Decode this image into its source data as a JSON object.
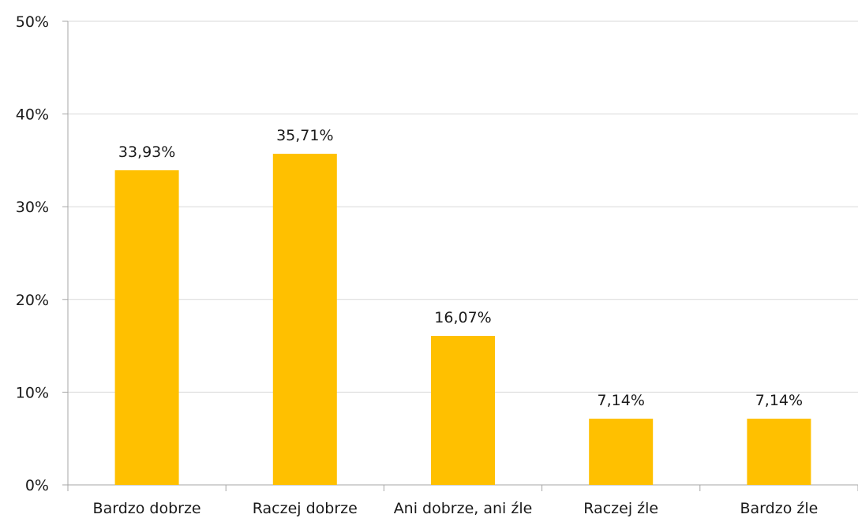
{
  "chart_data": {
    "type": "bar",
    "categories": [
      "Bardzo dobrze",
      "Raczej dobrze",
      "Ani dobrze, ani źle",
      "Raczej źle",
      "Bardzo źle"
    ],
    "values": [
      33.93,
      35.71,
      16.07,
      7.14,
      7.14
    ],
    "data_labels": [
      "33,93%",
      "35,71%",
      "16,07%",
      "7,14%",
      "7,14%"
    ],
    "y_ticks": [
      0,
      10,
      20,
      30,
      40,
      50
    ],
    "y_tick_labels": [
      "0%",
      "10%",
      "20%",
      "30%",
      "40%",
      "50%"
    ],
    "ylim": [
      0,
      50
    ],
    "title": "",
    "xlabel": "",
    "ylabel": "",
    "grid": true,
    "legend": "none",
    "bar_color": "#FFC000",
    "grid_color": "#d9d9d9",
    "axis_color": "#a6a6a6"
  }
}
